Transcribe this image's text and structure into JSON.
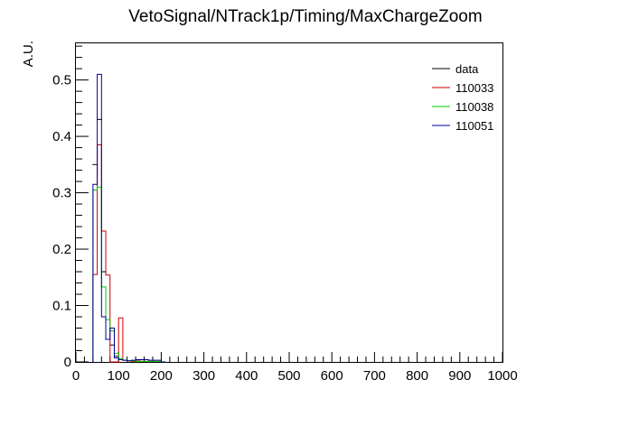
{
  "chart_data": {
    "type": "histogram",
    "title": "VetoSignal/NTrack1p/Timing/MaxChargeZoom",
    "xlabel": "",
    "ylabel": "A.U.",
    "xlim": [
      0,
      1000
    ],
    "ylim": [
      0,
      0.565
    ],
    "x_ticks": [
      0,
      100,
      200,
      300,
      400,
      500,
      600,
      700,
      800,
      900,
      1000
    ],
    "x_tick_labels": [
      "0",
      "100",
      "200",
      "300",
      "400",
      "500",
      "600",
      "700",
      "800",
      "900",
      "1000"
    ],
    "y_ticks": [
      0,
      0.1,
      0.2,
      0.3,
      0.4,
      0.5
    ],
    "y_tick_labels": [
      "0",
      "0.1",
      "0.2",
      "0.3",
      "0.4",
      "0.5"
    ],
    "bin_width": 10,
    "grid": false,
    "legend_position": "top-right",
    "series": [
      {
        "name": "data",
        "color": "#000000",
        "style": "markers",
        "bins_start": [
          40,
          50,
          60,
          70,
          80,
          90
        ],
        "values": [
          0.35,
          0.43,
          0.16,
          0.04,
          0.03,
          0.01
        ]
      },
      {
        "name": "110033",
        "color": "#cc0000",
        "style": "step",
        "bins_start": [
          40,
          50,
          60,
          70,
          80,
          90,
          100,
          110,
          120,
          130,
          140,
          150,
          160,
          170,
          180,
          190,
          200
        ],
        "values": [
          0.155,
          0.385,
          0.232,
          0.154,
          0.0,
          0.0,
          0.078,
          0.003,
          0.002,
          0.001,
          0.002,
          0.001,
          0.001,
          0.001,
          0.001,
          0.001,
          0.0
        ]
      },
      {
        "name": "110038",
        "color": "#00cc00",
        "style": "step",
        "bins_start": [
          40,
          50,
          60,
          70,
          80,
          90,
          100,
          110,
          120,
          130,
          140,
          150,
          160,
          170,
          180,
          190,
          200
        ],
        "values": [
          0.305,
          0.31,
          0.133,
          0.075,
          0.055,
          0.015,
          0.006,
          0.003,
          0.002,
          0.002,
          0.001,
          0.001,
          0.001,
          0.001,
          0.001,
          0.001,
          0.0
        ]
      },
      {
        "name": "110051",
        "color": "#000099",
        "style": "step",
        "bins_start": [
          40,
          50,
          60,
          70,
          80,
          90,
          100,
          110,
          120,
          130,
          140,
          150,
          160,
          170,
          180,
          190,
          200
        ],
        "values": [
          0.315,
          0.51,
          0.08,
          0.04,
          0.06,
          0.007,
          0.004,
          0.003,
          0.002,
          0.003,
          0.004,
          0.004,
          0.004,
          0.003,
          0.003,
          0.003,
          0.0
        ]
      }
    ]
  }
}
